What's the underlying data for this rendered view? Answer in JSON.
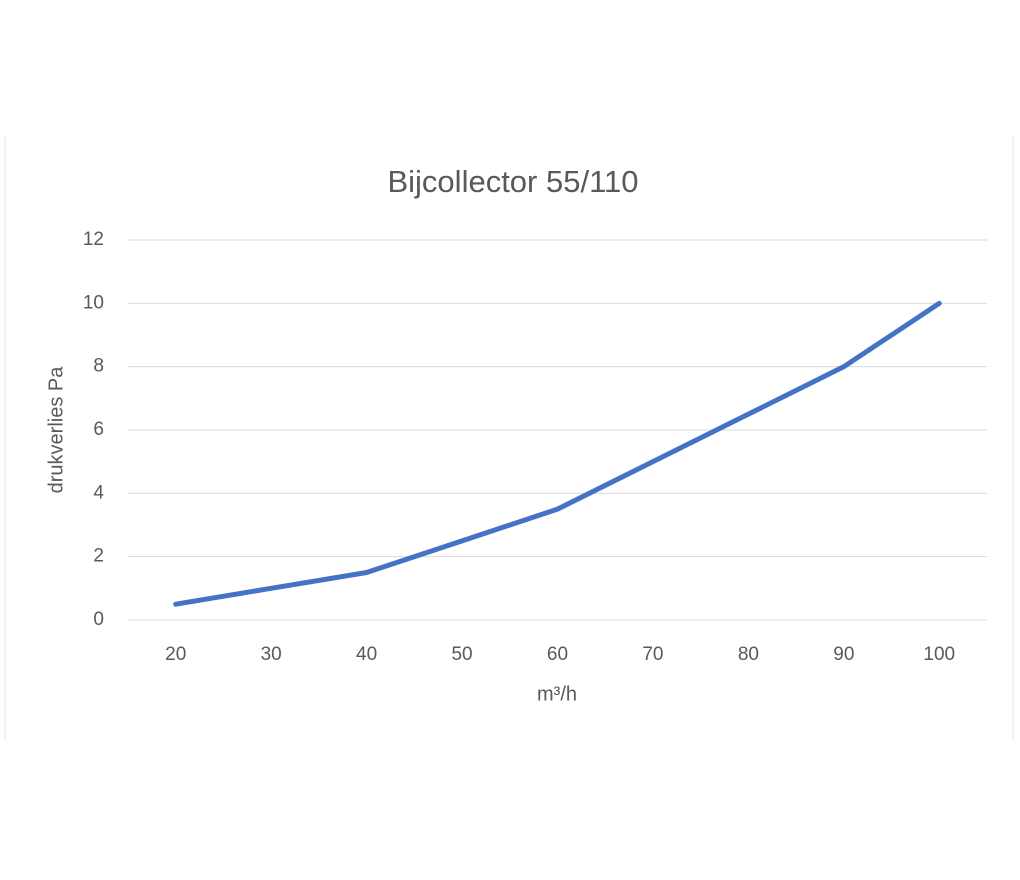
{
  "chart_data": {
    "type": "line",
    "title": "Bijcollector 55/110",
    "x_label": "m³/h",
    "y_label": "drukverlies Pa",
    "categories": [
      20,
      30,
      40,
      50,
      60,
      70,
      80,
      90,
      100
    ],
    "values": [
      0.5,
      1.0,
      1.5,
      2.5,
      3.5,
      5.0,
      6.5,
      8.0,
      10.0
    ],
    "color": "#4472c4",
    "ylim": [
      0,
      12
    ],
    "yticks": [
      0,
      2,
      4,
      6,
      8,
      10,
      12
    ],
    "grid": true
  }
}
